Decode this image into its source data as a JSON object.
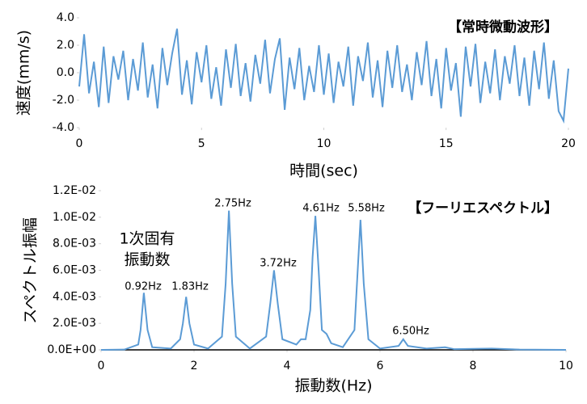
{
  "chart_data": [
    {
      "type": "line",
      "title": "【常時微動波形】",
      "x_label": "時間(sec)",
      "y_label": "速度(mm/s)",
      "color": "#5b9bd5",
      "x": [
        0,
        0.2,
        0.4,
        0.6,
        0.8,
        1,
        1.2,
        1.4,
        1.6,
        1.8,
        2,
        2.2,
        2.4,
        2.6,
        2.8,
        3,
        3.2,
        3.4,
        3.6,
        3.8,
        4,
        4.2,
        4.4,
        4.6,
        4.8,
        5,
        5.2,
        5.4,
        5.6,
        5.8,
        6,
        6.2,
        6.4,
        6.6,
        6.8,
        7,
        7.2,
        7.4,
        7.6,
        7.8,
        8,
        8.2,
        8.4,
        8.6,
        8.8,
        9,
        9.2,
        9.4,
        9.6,
        9.8,
        10,
        10.2,
        10.4,
        10.6,
        10.8,
        11,
        11.2,
        11.4,
        11.6,
        11.8,
        12,
        12.2,
        12.4,
        12.6,
        12.8,
        13,
        13.2,
        13.4,
        13.6,
        13.8,
        14,
        14.2,
        14.4,
        14.6,
        14.8,
        15,
        15.2,
        15.4,
        15.6,
        15.8,
        16,
        16.2,
        16.4,
        16.6,
        16.8,
        17,
        17.2,
        17.4,
        17.6,
        17.8,
        18,
        18.2,
        18.4,
        18.6,
        18.8,
        19,
        19.2,
        19.4,
        19.6,
        19.8,
        20
      ],
      "values": [
        -1.0,
        2.8,
        -1.5,
        0.8,
        -2.5,
        1.9,
        -2.2,
        1.2,
        -0.5,
        1.6,
        -2.0,
        1.0,
        -1.3,
        2.2,
        -1.8,
        0.6,
        -2.6,
        1.8,
        -0.9,
        1.4,
        3.2,
        -1.6,
        0.9,
        -2.3,
        1.5,
        -0.7,
        2.0,
        -1.9,
        0.4,
        -2.4,
        1.7,
        -1.1,
        2.1,
        -1.7,
        0.7,
        -2.1,
        1.3,
        -0.8,
        2.4,
        -1.5,
        1.0,
        2.5,
        -2.7,
        1.1,
        -1.2,
        1.8,
        -2.0,
        0.5,
        -1.4,
        2.0,
        -1.6,
        1.4,
        -2.2,
        0.8,
        -1.0,
        1.9,
        -2.4,
        1.2,
        -0.6,
        2.2,
        -1.8,
        0.9,
        -2.5,
        1.6,
        -1.1,
        2.0,
        -1.4,
        0.6,
        -2.0,
        1.5,
        -0.9,
        2.3,
        -1.7,
        1.0,
        -2.6,
        1.8,
        -1.3,
        0.7,
        -3.2,
        1.9,
        -1.0,
        2.1,
        -2.2,
        0.8,
        -1.5,
        1.7,
        -2.0,
        1.2,
        -0.8,
        2.0,
        -1.7,
        1.1,
        -2.4,
        1.6,
        -1.2,
        2.2,
        -1.9,
        0.9,
        -2.8,
        -3.5,
        0.3
      ],
      "xlim": [
        0,
        20
      ],
      "xticks": [
        0,
        5,
        10,
        15,
        20
      ],
      "ylim": [
        -4,
        4
      ],
      "yticks": [
        {
          "value": 4,
          "label": "4.0"
        },
        {
          "value": 2,
          "label": "2.0"
        },
        {
          "value": 0,
          "label": "0.0"
        },
        {
          "value": -2,
          "label": "-2.0"
        },
        {
          "value": -4,
          "label": "-4.0"
        }
      ]
    },
    {
      "type": "line",
      "title": "【フーリエスペクトル】",
      "x_label": "振動数(Hz)",
      "y_label": "スペクトル振幅",
      "color": "#5b9bd5",
      "annotation": [
        "1次固有",
        "振動数"
      ],
      "peak_labels": [
        "0.92Hz",
        "1.83Hz",
        "2.75Hz",
        "3.72Hz",
        "4.61Hz",
        "5.58Hz",
        "6.50Hz"
      ],
      "x": [
        0,
        0.5,
        0.8,
        0.85,
        0.92,
        1.0,
        1.1,
        1.5,
        1.7,
        1.76,
        1.83,
        1.9,
        2.0,
        2.3,
        2.6,
        2.68,
        2.75,
        2.82,
        2.9,
        3.2,
        3.55,
        3.64,
        3.72,
        3.8,
        3.9,
        4.2,
        4.3,
        4.4,
        4.5,
        4.55,
        4.61,
        4.68,
        4.75,
        4.85,
        4.95,
        5.2,
        5.45,
        5.52,
        5.58,
        5.65,
        5.75,
        6.0,
        6.4,
        6.5,
        6.6,
        7.0,
        7.4,
        7.6,
        8.4,
        9.0,
        10
      ],
      "values": [
        0,
        2e-05,
        0.0004,
        0.0015,
        0.0043,
        0.0015,
        0.0002,
        0.0001,
        0.0008,
        0.002,
        0.004,
        0.002,
        0.0004,
        0.0001,
        0.001,
        0.005,
        0.0105,
        0.005,
        0.001,
        0.0001,
        0.001,
        0.0035,
        0.006,
        0.0035,
        0.0008,
        0.0004,
        0.0008,
        0.0008,
        0.003,
        0.007,
        0.0101,
        0.006,
        0.0015,
        0.0012,
        0.0005,
        0.0002,
        0.0015,
        0.006,
        0.0098,
        0.005,
        0.0008,
        0.0001,
        0.0003,
        0.0008,
        0.0003,
        0.0001,
        0.0002,
        5e-05,
        0.0001,
        2e-05,
        0
      ],
      "xlim": [
        0,
        10
      ],
      "xticks": [
        0,
        2,
        4,
        6,
        8,
        10
      ],
      "ylim": [
        0,
        0.012
      ],
      "yticks": [
        {
          "value": 0.012,
          "label": "1.2E-02"
        },
        {
          "value": 0.01,
          "label": "1.0E-02"
        },
        {
          "value": 0.008,
          "label": "8.0E-03"
        },
        {
          "value": 0.006,
          "label": "6.0E-03"
        },
        {
          "value": 0.004,
          "label": "4.0E-03"
        },
        {
          "value": 0.002,
          "label": "2.0E-03"
        },
        {
          "value": 0,
          "label": "0.0E+00"
        }
      ]
    }
  ]
}
